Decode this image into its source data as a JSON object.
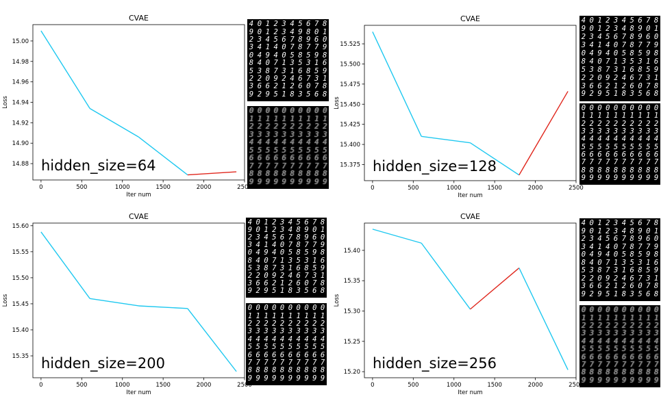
{
  "chart_data": [
    {
      "type": "line",
      "title": "CVAE",
      "xlabel": "Iter num",
      "ylabel": "Loss",
      "annotation": "hidden_size=64",
      "xlim": [
        -100,
        2500
      ],
      "ylim": [
        14.864,
        15.016
      ],
      "xticks": [
        0,
        500,
        1000,
        1500,
        2000,
        2500
      ],
      "yticks": [
        14.88,
        14.9,
        14.92,
        14.94,
        14.96,
        14.98,
        15.0
      ],
      "ytick_labels": [
        "14.88",
        "14.90",
        "14.92",
        "14.94",
        "14.96",
        "14.98",
        "15.00"
      ],
      "x": [
        0,
        600,
        1200,
        1800,
        2400
      ],
      "y": [
        15.01,
        14.934,
        14.906,
        14.869,
        14.872
      ],
      "segment_colors": [
        "#1ec8f0",
        "#1ec8f0",
        "#1ec8f0",
        "#e0261c"
      ],
      "digits_top": [
        "4012345678",
        "9012349801",
        "2345678960",
        "3414078779",
        "0494058598",
        "8407135316",
        "5387316859",
        "2209246731",
        "3662126078",
        "9295183568"
      ],
      "digits_bottom": [
        "0000000000",
        "1111111111",
        "2222222222",
        "3333333333",
        "4444444444",
        "5555555555",
        "6666666666",
        "7777777777",
        "8888888888",
        "9999999999"
      ],
      "bottom_blurry": true
    },
    {
      "type": "line",
      "title": "CVAE",
      "xlabel": "Iter num",
      "ylabel": "Loss",
      "annotation": "hidden_size=128",
      "xlim": [
        -100,
        2500
      ],
      "ylim": [
        15.355,
        15.548
      ],
      "xticks": [
        0,
        500,
        1000,
        1500,
        2000,
        2500
      ],
      "yticks": [
        15.375,
        15.4,
        15.425,
        15.45,
        15.475,
        15.5,
        15.525
      ],
      "ytick_labels": [
        "15.375",
        "15.400",
        "15.425",
        "15.450",
        "15.475",
        "15.500",
        "15.525"
      ],
      "x": [
        0,
        600,
        1200,
        1800,
        2400
      ],
      "y": [
        15.54,
        15.41,
        15.402,
        15.362,
        15.466
      ],
      "segment_colors": [
        "#1ec8f0",
        "#1ec8f0",
        "#1ec8f0",
        "#e0261c"
      ],
      "digits_top": [
        "4012345678",
        "9012348901",
        "2345678960",
        "3414078779",
        "0494058598",
        "8407135316",
        "5387316859",
        "2209246731",
        "3662126078",
        "9295183568"
      ],
      "digits_bottom": [
        "0000000000",
        "1111111111",
        "2222222222",
        "3333333333",
        "4444444444",
        "5555555555",
        "6666666666",
        "7777777777",
        "8888888888",
        "9999999999"
      ],
      "bottom_blurry": false
    },
    {
      "type": "line",
      "title": "CVAE",
      "xlabel": "Iter num",
      "ylabel": "Loss",
      "annotation": "hidden_size=200",
      "xlim": [
        -100,
        2500
      ],
      "ylim": [
        15.308,
        15.605
      ],
      "xticks": [
        0,
        500,
        1000,
        1500,
        2000,
        2500
      ],
      "yticks": [
        15.35,
        15.4,
        15.45,
        15.5,
        15.55,
        15.6
      ],
      "ytick_labels": [
        "15.35",
        "15.40",
        "15.45",
        "15.50",
        "15.55",
        "15.60"
      ],
      "x": [
        0,
        600,
        1200,
        1800,
        2400
      ],
      "y": [
        15.588,
        15.46,
        15.446,
        15.441,
        15.32
      ],
      "segment_colors": [
        "#1ec8f0",
        "#1ec8f0",
        "#1ec8f0",
        "#1ec8f0"
      ],
      "digits_top": [
        "4012345678",
        "9012348901",
        "2345678960",
        "3414078779",
        "0494058598",
        "8407135316",
        "5387316859",
        "2209246731",
        "3662126078",
        "9295183568"
      ],
      "digits_bottom": [
        "0000000000",
        "1111111111",
        "2222222222",
        "3333333333",
        "4444444444",
        "5555555555",
        "6666666666",
        "7777777777",
        "8888888888",
        "9999999999"
      ],
      "bottom_blurry": false
    },
    {
      "type": "line",
      "title": "CVAE",
      "xlabel": "Iter num",
      "ylabel": "Loss",
      "annotation": "hidden_size=256",
      "xlim": [
        -100,
        2500
      ],
      "ylim": [
        15.19,
        15.445
      ],
      "xticks": [
        0,
        500,
        1000,
        1500,
        2000,
        2500
      ],
      "yticks": [
        15.2,
        15.25,
        15.3,
        15.35,
        15.4
      ],
      "ytick_labels": [
        "15.20",
        "15.25",
        "15.30",
        "15.35",
        "15.40"
      ],
      "x": [
        0,
        600,
        1200,
        1800,
        2400
      ],
      "y": [
        15.435,
        15.412,
        15.303,
        15.371,
        15.203
      ],
      "segment_colors": [
        "#1ec8f0",
        "#1ec8f0",
        "#e0261c",
        "#1ec8f0"
      ],
      "digits_top": [
        "4012345678",
        "9012348901",
        "2345678960",
        "3414078779",
        "0494058598",
        "8407135316",
        "5387316859",
        "2209246731",
        "3662126078",
        "9295183568"
      ],
      "digits_bottom": [
        "0000000000",
        "1111111111",
        "2222222222",
        "3333333333",
        "4444444444",
        "5555555555",
        "6666666666",
        "7777777777",
        "8888888888",
        "9999999999"
      ],
      "bottom_blurry": true
    }
  ]
}
